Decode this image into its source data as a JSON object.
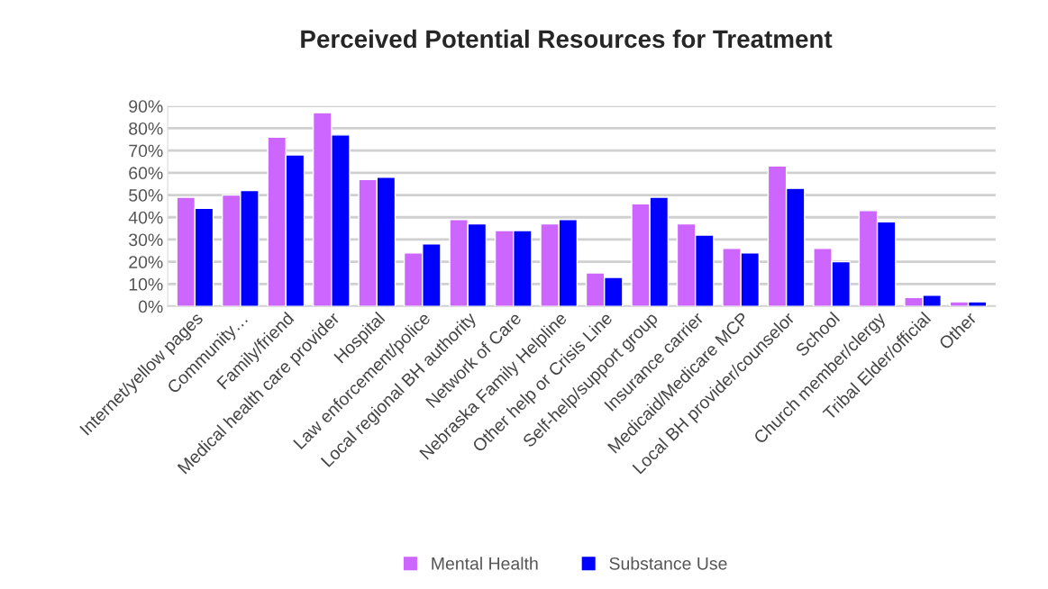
{
  "chart_data": {
    "type": "bar",
    "title": "Perceived Potential Resources for Treatment",
    "categories": [
      "Internet/yellow pages",
      "Community…",
      "Family/friend",
      "Medical health care provider",
      "Hospital",
      "Law enforcement/police",
      "Local regional BH authority",
      "Network of Care",
      "Nebraska Family Helpline",
      "Other help or Crisis Line",
      "Self-help/support group",
      "Insurance carrier",
      "Medicaid/Medicare MCP",
      "Local BH provider/counselor",
      "School",
      "Church member/clergy",
      "Tribal Elder/official",
      "Other"
    ],
    "series": [
      {
        "name": "Mental Health",
        "color": "#cc66ff",
        "values": [
          49,
          50,
          76,
          87,
          57,
          24,
          39,
          34,
          37,
          15,
          46,
          37,
          26,
          63,
          26,
          43,
          4,
          2
        ]
      },
      {
        "name": "Substance Use",
        "color": "#0000ff",
        "values": [
          44,
          52,
          68,
          77,
          58,
          28,
          37,
          34,
          39,
          13,
          49,
          32,
          24,
          53,
          20,
          38,
          5,
          2
        ]
      }
    ],
    "ylim": [
      0,
      90
    ],
    "yticks": [
      {
        "value": 0,
        "label": "0%"
      },
      {
        "value": 10,
        "label": "10%"
      },
      {
        "value": 20,
        "label": "20%"
      },
      {
        "value": 30,
        "label": "30%"
      },
      {
        "value": 40,
        "label": "40%"
      },
      {
        "value": 50,
        "label": "50%"
      },
      {
        "value": 60,
        "label": "60%"
      },
      {
        "value": 70,
        "label": "70%"
      },
      {
        "value": 80,
        "label": "80%"
      },
      {
        "value": 90,
        "label": "90%"
      }
    ],
    "grid": "y",
    "legend": "bottom"
  }
}
